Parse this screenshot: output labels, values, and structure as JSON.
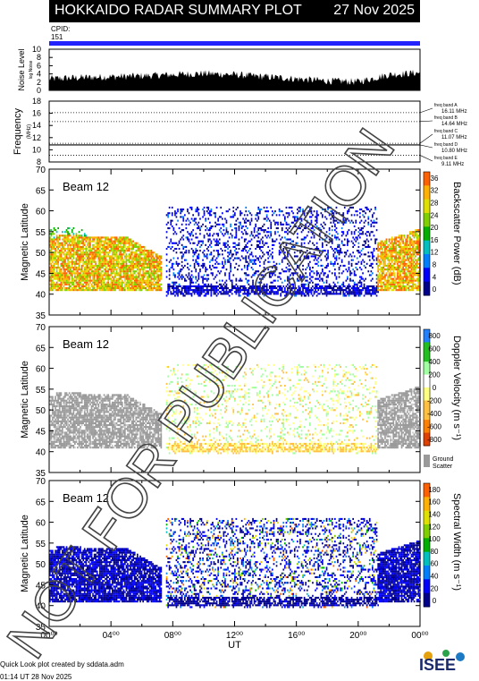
{
  "header": {
    "title": "HOKKAIDO RADAR SUMMARY PLOT",
    "date": "27 Nov 2025"
  },
  "cpid": {
    "label": "CPID:",
    "value": "151"
  },
  "noise": {
    "ylabel": "Noise Level",
    "sublabel": "log Noise",
    "ticks": [
      "10",
      "8",
      "6",
      "4",
      "2",
      "0"
    ]
  },
  "frequency": {
    "ylabel": "Frequency",
    "unit": "(MHz)",
    "ticks": [
      "18",
      "16",
      "14",
      "12",
      "10",
      "8"
    ],
    "bands": [
      {
        "name": "freq band A",
        "value": "16.11 MHz"
      },
      {
        "name": "freq band B",
        "value": "14.64 MHz"
      },
      {
        "name": "freq band C",
        "value": "11.07 MHz"
      },
      {
        "name": "freq band D",
        "value": "10.80 MHz"
      },
      {
        "name": "freq band E",
        "value": "9.11 MHz"
      }
    ]
  },
  "panels": [
    {
      "beam": "Beam 12",
      "ylabel": "Magnetic Latitude",
      "cbar_label": "Backscatter Power (dB)",
      "cbar_ticks": [
        "36",
        "32",
        "28",
        "24",
        "20",
        "16",
        "12",
        "8",
        "4",
        "0"
      ]
    },
    {
      "beam": "Beam 12",
      "ylabel": "Magnetic Latitude",
      "cbar_label": "Doppler Velocity (m s⁻¹)",
      "cbar_ticks": [
        "800",
        "600",
        "400",
        "200",
        "0",
        "-200",
        "-400",
        "-600",
        "-800"
      ],
      "ground_label": "Ground Scatter"
    },
    {
      "beam": "Beam 12",
      "ylabel": "Magnetic Latitude",
      "cbar_label": "Spectral Width (m s⁻¹)",
      "cbar_ticks": [
        "180",
        "160",
        "140",
        "120",
        "100",
        "80",
        "60",
        "40",
        "20",
        "0"
      ]
    }
  ],
  "lat_ticks": [
    "70",
    "65",
    "60",
    "55",
    "50",
    "45",
    "40",
    "35"
  ],
  "xaxis": {
    "label": "UT",
    "ticks": [
      "00⁰⁰",
      "04⁰⁰",
      "08⁰⁰",
      "12⁰⁰",
      "16⁰⁰",
      "20⁰⁰",
      "00⁰⁰"
    ]
  },
  "watermark": "NOT FOR PUBLICATION",
  "footer": {
    "line1": "Quick Look plot created by sddata.adm",
    "line2": "01:14 UT 28 Nov 2025"
  },
  "logo": {
    "text": "ISEE"
  },
  "chart_data": [
    {
      "type": "area",
      "title": "Noise Level",
      "ylim": [
        0,
        10
      ],
      "xlim_hours_ut": [
        0,
        24
      ],
      "x_hours_ut": [
        0,
        2,
        4,
        6,
        8,
        10,
        12,
        14,
        16,
        18,
        20,
        22,
        24
      ],
      "values": [
        2.5,
        2.8,
        3.0,
        3.2,
        3.5,
        3.8,
        3.5,
        3.0,
        2.5,
        2.0,
        1.8,
        3.5,
        4.0
      ]
    },
    {
      "type": "line",
      "title": "Frequency",
      "ylim": [
        8,
        18
      ],
      "band_lines_mhz": [
        16.11,
        14.64,
        11.07,
        10.8,
        9.11
      ],
      "operating_mhz": 10.8
    },
    {
      "type": "heatmap",
      "title": "Backscatter Power (dB)",
      "ylim": [
        35,
        70
      ],
      "zlim": [
        0,
        36
      ],
      "features": [
        {
          "ut_start": 0,
          "ut_end": 7,
          "lat_start": 40,
          "lat_end": 55,
          "level": "high (16-36 dB)"
        },
        {
          "ut_start": 7.5,
          "ut_end": 21,
          "lat_start": 39,
          "lat_end": 61,
          "level": "low (0-4 dB)"
        },
        {
          "ut_start": 21,
          "ut_end": 24,
          "lat_start": 40,
          "lat_end": 52,
          "level": "high (16-36 dB)"
        }
      ]
    },
    {
      "type": "heatmap",
      "title": "Doppler Velocity (m s-1)",
      "ylim": [
        35,
        70
      ],
      "zlim": [
        -800,
        800
      ],
      "features": [
        {
          "ut_start": 0,
          "ut_end": 7,
          "lat_start": 41,
          "lat_end": 53,
          "level": "ground scatter"
        },
        {
          "ut_start": 7.5,
          "ut_end": 21,
          "lat_start": 40,
          "lat_end": 61,
          "level": "mixed -200 to 200"
        },
        {
          "ut_start": 21,
          "ut_end": 24,
          "lat_start": 41,
          "lat_end": 52,
          "level": "ground scatter"
        }
      ]
    },
    {
      "type": "heatmap",
      "title": "Spectral Width (m s-1)",
      "ylim": [
        35,
        70
      ],
      "zlim": [
        0,
        180
      ],
      "features": [
        {
          "ut_start": 0,
          "ut_end": 7,
          "lat_start": 41,
          "lat_end": 53,
          "level": "low (0-20)"
        },
        {
          "ut_start": 7.5,
          "ut_end": 21,
          "lat_start": 39,
          "lat_end": 61,
          "level": "mixed 0-180"
        },
        {
          "ut_start": 21,
          "ut_end": 24,
          "lat_start": 41,
          "lat_end": 52,
          "level": "low (0-20)"
        }
      ]
    }
  ]
}
